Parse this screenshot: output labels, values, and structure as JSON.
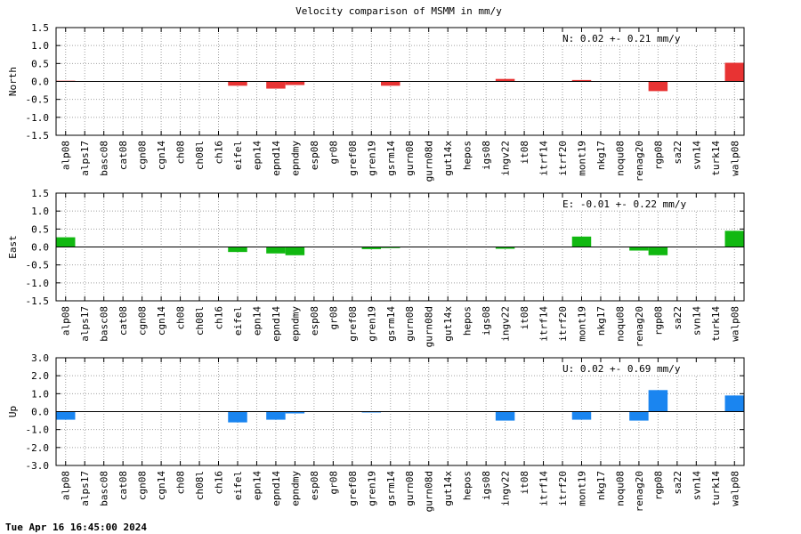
{
  "title": "Velocity comparison of MSMM in mm/y",
  "footer": "Tue Apr 16 16:45:00 2024",
  "chart_data": [
    {
      "type": "bar",
      "ylabel": "North",
      "color": "#e83333",
      "ylim": [
        -1.5,
        1.5
      ],
      "yticks": [
        "-1.5",
        "-1.0",
        "-0.5",
        "0.0",
        "0.5",
        "1.0",
        "1.5"
      ],
      "grid": true,
      "annotation": "N:   0.02 +-  0.21 mm/y",
      "categories": [
        "alp08",
        "alps17",
        "basc08",
        "cat08",
        "cgn08",
        "cgn14",
        "ch08",
        "ch08l",
        "ch16",
        "eifel",
        "epn14",
        "epnd14",
        "epndmy",
        "esp08",
        "gr08",
        "gref08",
        "gren19",
        "gsrm14",
        "gurn08",
        "gurn08d",
        "gut14x",
        "hepos",
        "igs08",
        "ingv22",
        "it08",
        "itrf14",
        "itrf20",
        "mont19",
        "nkg17",
        "noqu08",
        "renag20",
        "rgp08",
        "sa22",
        "svn14",
        "turk14",
        "walp08"
      ],
      "values": [
        0.02,
        0,
        0,
        0,
        0,
        0,
        0,
        0,
        0,
        -0.12,
        0,
        -0.2,
        -0.1,
        0,
        0,
        0,
        0,
        -0.12,
        0,
        0,
        0,
        0,
        0,
        0.07,
        0,
        0,
        0,
        0.04,
        0,
        0,
        0,
        -0.27,
        0,
        0,
        0,
        0.52
      ]
    },
    {
      "type": "bar",
      "ylabel": "East",
      "color": "#11b811",
      "ylim": [
        -1.5,
        1.5
      ],
      "yticks": [
        "-1.5",
        "-1.0",
        "-0.5",
        "0.0",
        "0.5",
        "1.0",
        "1.5"
      ],
      "grid": true,
      "annotation": "E:  -0.01 +-  0.22 mm/y",
      "categories": [
        "alp08",
        "alps17",
        "basc08",
        "cat08",
        "cgn08",
        "cgn14",
        "ch08",
        "ch08l",
        "ch16",
        "eifel",
        "epn14",
        "epnd14",
        "epndmy",
        "esp08",
        "gr08",
        "gref08",
        "gren19",
        "gsrm14",
        "gurn08",
        "gurn08d",
        "gut14x",
        "hepos",
        "igs08",
        "ingv22",
        "it08",
        "itrf14",
        "itrf20",
        "mont19",
        "nkg17",
        "noqu08",
        "renag20",
        "rgp08",
        "sa22",
        "svn14",
        "turk14",
        "walp08"
      ],
      "values": [
        0.27,
        0,
        0,
        0,
        0,
        0,
        0,
        0,
        0,
        -0.14,
        0,
        -0.18,
        -0.23,
        0,
        0,
        0,
        -0.06,
        -0.03,
        0,
        0,
        0,
        0,
        0,
        -0.05,
        0,
        0,
        0,
        0.29,
        0,
        0,
        -0.1,
        -0.23,
        0,
        0,
        0,
        0.45
      ]
    },
    {
      "type": "bar",
      "ylabel": "Up",
      "color": "#1a85f0",
      "ylim": [
        -3.0,
        3.0
      ],
      "yticks": [
        "-3.0",
        "-2.0",
        "-1.0",
        "0.0",
        "1.0",
        "2.0",
        "3.0"
      ],
      "grid": true,
      "annotation": "U:   0.02 +-  0.69 mm/y",
      "categories": [
        "alp08",
        "alps17",
        "basc08",
        "cat08",
        "cgn08",
        "cgn14",
        "ch08",
        "ch08l",
        "ch16",
        "eifel",
        "epn14",
        "epnd14",
        "epndmy",
        "esp08",
        "gr08",
        "gref08",
        "gren19",
        "gsrm14",
        "gurn08",
        "gurn08d",
        "gut14x",
        "hepos",
        "igs08",
        "ingv22",
        "it08",
        "itrf14",
        "itrf20",
        "mont19",
        "nkg17",
        "noqu08",
        "renag20",
        "rgp08",
        "sa22",
        "svn14",
        "turk14",
        "walp08"
      ],
      "values": [
        -0.45,
        0,
        0,
        0,
        0,
        0,
        0,
        0,
        0,
        -0.6,
        0,
        -0.45,
        -0.1,
        0,
        0,
        0,
        -0.05,
        0,
        0,
        0,
        0,
        0,
        0,
        -0.5,
        0,
        0,
        0,
        -0.45,
        0,
        0,
        -0.5,
        1.2,
        0,
        0,
        0,
        0.9
      ]
    }
  ]
}
